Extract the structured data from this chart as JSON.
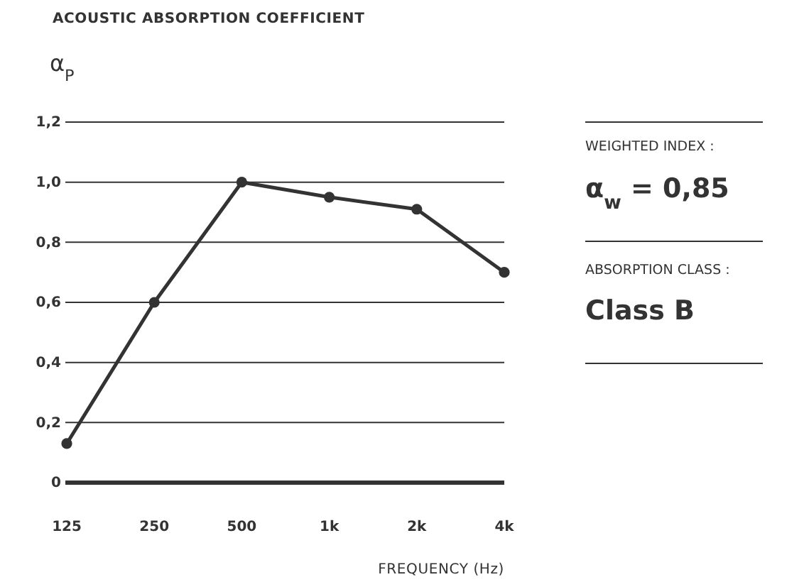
{
  "chart_data": {
    "type": "line",
    "title": "ACOUSTIC ABSORPTION COEFFICIENT",
    "ylabel": "α$_{P}$",
    "xlabel": "FREQUENCY (Hz)",
    "categories": [
      "125",
      "250",
      "500",
      "1k",
      "2k",
      "4k"
    ],
    "series": [
      {
        "color": "#333333",
        "values": [
          0.13,
          0.6,
          1.0,
          0.95,
          0.91,
          0.7
        ]
      }
    ],
    "ylim": [
      0,
      1.2
    ],
    "yticks": [
      {
        "value": 0,
        "label": "0"
      },
      {
        "value": 0.2,
        "label": "0,2"
      },
      {
        "value": 0.4,
        "label": "0,4"
      },
      {
        "value": 0.6,
        "label": "0,6"
      },
      {
        "value": 0.8,
        "label": "0,8"
      },
      {
        "value": 1.0,
        "label": "1,0"
      },
      {
        "value": 1.2,
        "label": "1,2"
      }
    ],
    "grid": "y",
    "marker": "circle",
    "line_style": "solid",
    "annotations": [
      "WEIGHTED INDEX :",
      "α$_{w}$ = 0,85",
      "ABSORPTION CLASS :",
      "Class B"
    ]
  }
}
